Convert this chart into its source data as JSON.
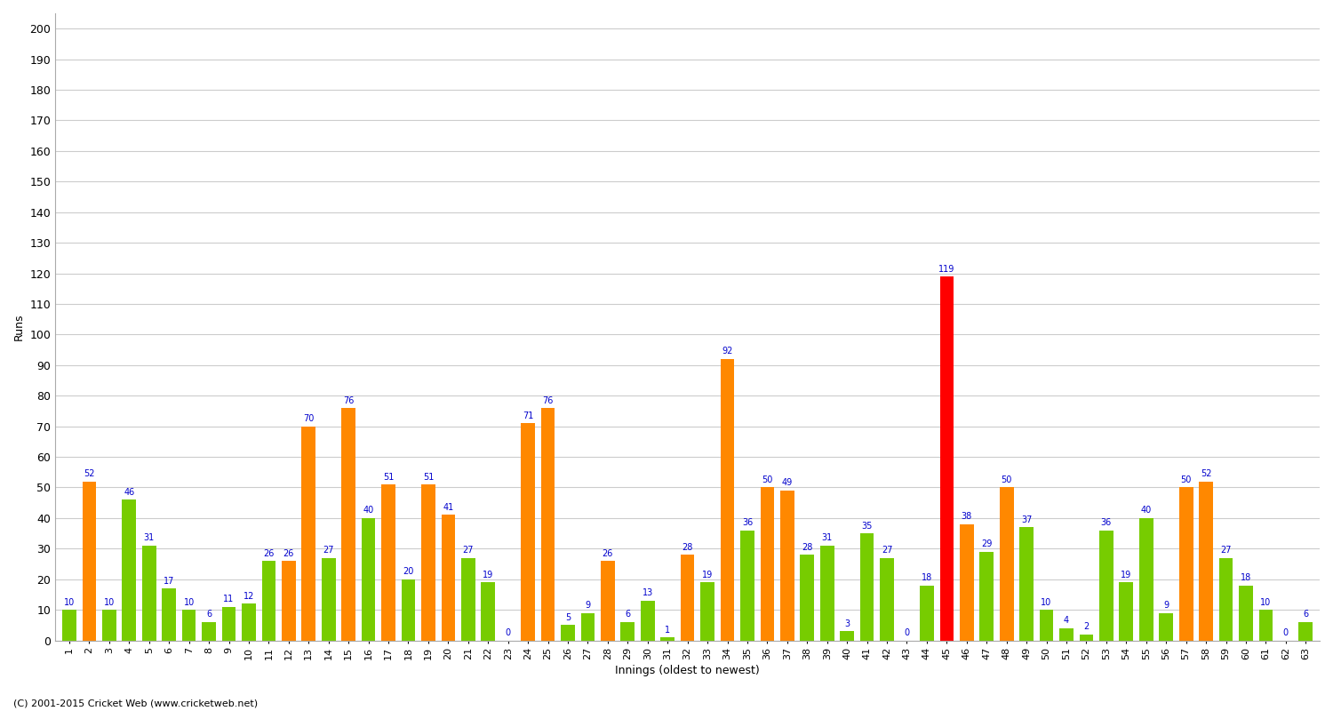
{
  "xlabel": "Innings (oldest to newest)",
  "ylabel": "Runs",
  "background_color": "#ffffff",
  "grid_color": "#cccccc",
  "innings_numbers": [
    1,
    2,
    3,
    4,
    5,
    6,
    7,
    8,
    9,
    10,
    11,
    12,
    13,
    14,
    15,
    16,
    17,
    18,
    19,
    20,
    21,
    22,
    23,
    24,
    25,
    26,
    27,
    28,
    29,
    30,
    31,
    32,
    33,
    34,
    35,
    36,
    37,
    38,
    39,
    40,
    41,
    42,
    43,
    44,
    45,
    46,
    47,
    48,
    49,
    50,
    51,
    52,
    53,
    54,
    55,
    56,
    57,
    58,
    59,
    60,
    61,
    62,
    63
  ],
  "values": [
    10,
    52,
    10,
    46,
    31,
    17,
    10,
    6,
    11,
    12,
    26,
    26,
    70,
    27,
    76,
    40,
    51,
    20,
    51,
    41,
    27,
    19,
    0,
    71,
    76,
    5,
    9,
    26,
    6,
    13,
    1,
    28,
    19,
    92,
    36,
    50,
    49,
    28,
    31,
    3,
    35,
    27,
    0,
    18,
    119,
    38,
    29,
    50,
    37,
    10,
    4,
    2,
    36,
    19,
    40,
    9,
    50,
    52,
    27,
    18,
    10,
    0,
    6
  ],
  "colors": [
    "#77cc00",
    "#ff8800",
    "#77cc00",
    "#77cc00",
    "#77cc00",
    "#77cc00",
    "#77cc00",
    "#77cc00",
    "#77cc00",
    "#77cc00",
    "#77cc00",
    "#ff8800",
    "#ff8800",
    "#77cc00",
    "#ff8800",
    "#77cc00",
    "#ff8800",
    "#77cc00",
    "#ff8800",
    "#ff8800",
    "#77cc00",
    "#77cc00",
    "#77cc00",
    "#ff8800",
    "#ff8800",
    "#77cc00",
    "#77cc00",
    "#ff8800",
    "#77cc00",
    "#77cc00",
    "#77cc00",
    "#ff8800",
    "#77cc00",
    "#ff8800",
    "#77cc00",
    "#ff8800",
    "#ff8800",
    "#77cc00",
    "#77cc00",
    "#77cc00",
    "#77cc00",
    "#77cc00",
    "#77cc00",
    "#77cc00",
    "#ff0000",
    "#ff8800",
    "#77cc00",
    "#ff8800",
    "#77cc00",
    "#77cc00",
    "#77cc00",
    "#77cc00",
    "#77cc00",
    "#77cc00",
    "#77cc00",
    "#77cc00",
    "#ff8800",
    "#ff8800",
    "#77cc00",
    "#77cc00",
    "#77cc00",
    "#77cc00",
    "#77cc00"
  ],
  "ylim": [
    0,
    205
  ],
  "yticks": [
    0,
    10,
    20,
    30,
    40,
    50,
    60,
    70,
    80,
    90,
    100,
    110,
    120,
    130,
    140,
    150,
    160,
    170,
    180,
    190,
    200
  ],
  "footer": "(C) 2001-2015 Cricket Web (www.cricketweb.net)",
  "label_color": "#0000cc",
  "bar_width": 0.7
}
